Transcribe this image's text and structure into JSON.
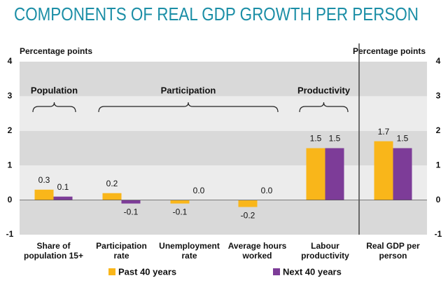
{
  "chart_data": {
    "type": "bar",
    "title": "COMPONENTS OF REAL GDP GROWTH PER PERSON",
    "ylabel": "Percentage points",
    "y2label": "Percentage points",
    "annotations": [
      "Population",
      "Participation",
      "Productivity"
    ],
    "categories": [
      "Share of\npopulation 15+",
      "Participation\nrate",
      "Unemployment\nrate",
      "Average hours\nworked",
      "Labour\nproductivity",
      "Real GDP per\nperson"
    ],
    "series": [
      {
        "name": "Past 40 years",
        "color": "#f9b61a",
        "values": [
          0.3,
          0.2,
          -0.1,
          -0.2,
          1.5,
          1.7
        ],
        "value_labels": [
          "0.3",
          "0.2",
          "-0.1",
          "-0.2",
          "1.5",
          "1.7"
        ]
      },
      {
        "name": "Next 40 years",
        "color": "#7d3c98",
        "values": [
          0.1,
          -0.1,
          0,
          0,
          1.5,
          1.5
        ],
        "value_labels": [
          "0.1",
          "-0.1",
          "0.0",
          "0.0",
          "1.5",
          "1.5"
        ]
      }
    ],
    "ylim": [
      -1,
      4
    ],
    "yticks": [
      -1,
      0,
      1,
      2,
      3,
      4
    ],
    "grid": true
  }
}
